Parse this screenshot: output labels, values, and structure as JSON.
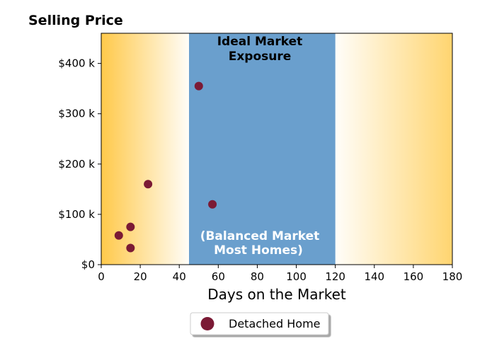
{
  "chart_data": {
    "type": "scatter",
    "title": "Selling Price",
    "xlabel": "Days on the Market",
    "ylabel": "",
    "xlim": [
      0,
      180
    ],
    "ylim": [
      0,
      460000
    ],
    "x_ticks": [
      0,
      20,
      40,
      60,
      80,
      100,
      120,
      140,
      160,
      180
    ],
    "x_tick_labels": [
      "0",
      "20",
      "40",
      "60",
      "80",
      "100",
      "120",
      "140",
      "160",
      "180"
    ],
    "y_ticks": [
      0,
      100000,
      200000,
      300000,
      400000
    ],
    "y_tick_labels": [
      "$0",
      "$100 k",
      "$200 k",
      "$300 k",
      "$400 k"
    ],
    "grid": false,
    "legend_position": "bottom-center-outside",
    "bands": [
      {
        "from": 0,
        "to": 45,
        "kind": "gradient-from-left",
        "color": "#ffc94a"
      },
      {
        "from": 45,
        "to": 120,
        "kind": "solid",
        "color": "#6a9fcd"
      },
      {
        "from": 120,
        "to": 180,
        "kind": "gradient-to-right",
        "color": "#ffd570"
      }
    ],
    "annotations": {
      "top_line1": "Ideal Market",
      "top_line2": "Exposure",
      "bottom_line1": "(Balanced Market",
      "bottom_line2": "Most Homes)"
    },
    "series": [
      {
        "name": "Detached Home",
        "color": "#7b1a35",
        "points": [
          {
            "x": 9,
            "y": 58000
          },
          {
            "x": 15,
            "y": 75000
          },
          {
            "x": 15,
            "y": 33000
          },
          {
            "x": 24,
            "y": 160000
          },
          {
            "x": 50,
            "y": 355000
          },
          {
            "x": 57,
            "y": 120000
          }
        ]
      }
    ]
  }
}
